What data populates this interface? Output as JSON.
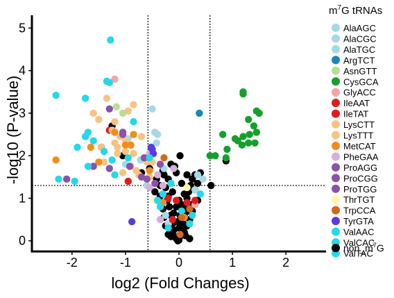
{
  "chart_data": {
    "type": "scatter",
    "title": "",
    "xlabel": "log2 (Fold Changes)",
    "ylabel": "-log10 (P-value)",
    "xlim": [
      -2.75,
      2.75
    ],
    "ylim": [
      -0.25,
      5.3
    ],
    "x_ticks": [
      -2,
      -1,
      0,
      1,
      2
    ],
    "x_tick_labels": [
      "-2",
      "-1",
      "0",
      "1",
      "2"
    ],
    "y_ticks": [
      0,
      1,
      2,
      3,
      4,
      5
    ],
    "y_tick_labels": [
      "0",
      "1",
      "2",
      "3",
      "4",
      "5"
    ],
    "thresholds": {
      "x": [
        -0.58,
        0.58
      ],
      "y": 1.3
    },
    "grid": false,
    "legend_position": "right",
    "legend": {
      "title_base": "m",
      "title_sup": "7",
      "title_rest": "G tRNAs",
      "bottom_label_base": "non_m",
      "bottom_label_sup": "7",
      "bottom_label_rest": "G"
    },
    "series": [
      {
        "name": "AlaAGC",
        "color": "#a6d8ea",
        "points": [
          [
            -0.95,
            2.4
          ],
          [
            -0.45,
            2.55
          ],
          [
            -0.72,
            1.9
          ],
          [
            0.35,
            1.55
          ],
          [
            -0.25,
            0.6
          ]
        ]
      },
      {
        "name": "AlaCGC",
        "color": "#a6d8ea",
        "points": [
          [
            -0.5,
            3.1
          ],
          [
            -0.4,
            2.5
          ],
          [
            -0.2,
            0.4
          ],
          [
            0.45,
            1.45
          ],
          [
            -1.0,
            1.8
          ]
        ]
      },
      {
        "name": "AlaTGC",
        "color": "#a6d8ea",
        "points": [
          [
            -0.42,
            2.3
          ],
          [
            -0.28,
            1.7
          ],
          [
            0.3,
            1.2
          ],
          [
            -0.6,
            1.3
          ]
        ]
      },
      {
        "name": "ArgTCT",
        "color": "#1a87b8",
        "points": [
          [
            0.38,
            3.0
          ]
        ]
      },
      {
        "name": "AsnGTT",
        "color": "#b5df96",
        "points": [
          [
            -1.17,
            3.15
          ],
          [
            -1.05,
            3.0
          ]
        ]
      },
      {
        "name": "CysGCA",
        "color": "#15a02c",
        "points": [
          [
            1.2,
            3.5
          ],
          [
            1.2,
            3.45
          ],
          [
            1.45,
            3.05
          ],
          [
            1.5,
            3.0
          ],
          [
            1.3,
            2.85
          ],
          [
            1.4,
            2.7
          ],
          [
            1.45,
            2.55
          ],
          [
            1.32,
            2.5
          ],
          [
            1.2,
            2.45
          ],
          [
            1.1,
            2.35
          ],
          [
            1.3,
            2.3
          ],
          [
            1.42,
            2.3
          ],
          [
            0.82,
            2.5
          ],
          [
            1.05,
            2.4
          ],
          [
            1.18,
            2.25
          ],
          [
            0.9,
            2.15
          ],
          [
            0.68,
            2.0
          ],
          [
            0.58,
            2.0
          ],
          [
            0.88,
            1.95
          ]
        ]
      },
      {
        "name": "GlyACC",
        "color": "#f4a6a6",
        "points": [
          [
            -1.2,
            3.8
          ],
          [
            0.3,
            0.85
          ]
        ]
      },
      {
        "name": "IleAAT",
        "color": "#e31a1c",
        "points": [
          [
            -1.3,
            2.6
          ],
          [
            -0.95,
            1.4
          ],
          [
            0.15,
            0.9
          ],
          [
            -0.12,
            0.5
          ]
        ]
      },
      {
        "name": "IleTAT",
        "color": "#e31a1c",
        "points": [
          [
            -0.05,
            0.95
          ],
          [
            0.3,
            0.95
          ],
          [
            -0.2,
            1.0
          ]
        ]
      },
      {
        "name": "LysCTT",
        "color": "#f7c384",
        "points": [
          [
            -1.6,
            3.0
          ],
          [
            -1.5,
            2.85
          ],
          [
            -1.25,
            2.6
          ],
          [
            -1.1,
            2.45
          ],
          [
            -1.2,
            2.3
          ],
          [
            -1.15,
            2.2
          ],
          [
            -1.0,
            2.1
          ],
          [
            -0.85,
            2.05
          ],
          [
            -1.4,
            1.85
          ],
          [
            -1.3,
            1.7
          ],
          [
            -0.8,
            1.65
          ],
          [
            -0.7,
            2.45
          ],
          [
            -0.85,
            3.2
          ],
          [
            -0.95,
            3.05
          ],
          [
            -1.35,
            3.35
          ],
          [
            -1.15,
            2.05
          ],
          [
            -0.75,
            1.55
          ],
          [
            -0.6,
            1.85
          ]
        ]
      },
      {
        "name": "LysTTT",
        "color": "#f7c384",
        "points": [
          [
            -1.45,
            2.2
          ],
          [
            -1.2,
            2.8
          ],
          [
            -1.0,
            2.35
          ],
          [
            -0.9,
            1.75
          ],
          [
            -0.5,
            1.85
          ],
          [
            -1.05,
            1.6
          ],
          [
            -0.55,
            1.5
          ]
        ]
      },
      {
        "name": "MetCAT",
        "color": "#f28d1a",
        "points": [
          [
            -2.3,
            1.9
          ],
          [
            -1.65,
            2.2
          ],
          [
            -1.5,
            1.85
          ],
          [
            -1.2,
            2.55
          ],
          [
            -1.0,
            2.25
          ],
          [
            -0.9,
            2.25
          ],
          [
            -0.85,
            2.5
          ],
          [
            -0.55,
            1.65
          ],
          [
            -0.3,
            0.9
          ],
          [
            0.1,
            0.55
          ]
        ]
      },
      {
        "name": "PheGAA",
        "color": "#d5b0d8",
        "points": [
          [
            -0.5,
            2.1
          ],
          [
            -0.55,
            2.05
          ],
          [
            -0.4,
            1.55
          ],
          [
            -0.55,
            1.25
          ],
          [
            -0.3,
            1.3
          ],
          [
            -0.1,
            1.7
          ],
          [
            -0.35,
            0.5
          ]
        ]
      },
      {
        "name": "ProAGG",
        "color": "#8a52a8",
        "points": [
          [
            -1.3,
            3.1
          ],
          [
            -1.05,
            2.55
          ],
          [
            -0.92,
            1.75
          ],
          [
            -0.7,
            1.5
          ],
          [
            -2.1,
            1.45
          ]
        ]
      },
      {
        "name": "ProCGG",
        "color": "#8a52a8",
        "points": [
          [
            -1.05,
            2.5
          ],
          [
            -0.65,
            1.95
          ],
          [
            -1.3,
            1.7
          ],
          [
            -0.6,
            1.45
          ]
        ]
      },
      {
        "name": "ProTGG",
        "color": "#8a52a8",
        "points": [
          [
            -0.45,
            1.35
          ],
          [
            -0.35,
            1.8
          ],
          [
            -1.6,
            1.75
          ]
        ]
      },
      {
        "name": "ThrTGT",
        "color": "#fff7a8",
        "points": [
          [
            -0.45,
            0.95
          ],
          [
            0.15,
            1.25
          ]
        ]
      },
      {
        "name": "TrpCCA",
        "color": "#d2691e",
        "points": [
          [
            -0.28,
            1.95
          ],
          [
            0.05,
            0.55
          ],
          [
            0.2,
            0.75
          ],
          [
            0.02,
            0.15
          ]
        ]
      },
      {
        "name": "TyrGTA",
        "color": "#5b3be0",
        "points": [
          [
            -0.88,
            0.45
          ],
          [
            -0.5,
            2.15
          ],
          [
            -0.48,
            2.05
          ],
          [
            -0.52,
            2.2
          ]
        ]
      },
      {
        "name": "ValAAC",
        "color": "#23d9ea",
        "points": [
          [
            -1.28,
            4.72
          ],
          [
            -2.3,
            3.42
          ],
          [
            -1.75,
            3.35
          ],
          [
            -1.35,
            3.75
          ],
          [
            -1.3,
            3.72
          ],
          [
            -1.7,
            2.55
          ],
          [
            -1.6,
            2.35
          ],
          [
            -1.9,
            2.2
          ],
          [
            -1.7,
            1.75
          ],
          [
            -2.25,
            1.45
          ],
          [
            -1.95,
            1.4
          ],
          [
            -1.25,
            1.9
          ],
          [
            -1.2,
            1.55
          ],
          [
            -0.4,
            0.95
          ],
          [
            -0.3,
            1.1
          ],
          [
            0.2,
            0.4
          ]
        ]
      },
      {
        "name": "ValCAC",
        "color": "#23d9ea",
        "points": [
          [
            -1.75,
            2.45
          ],
          [
            -1.4,
            2.1
          ],
          [
            -0.85,
            2.8
          ],
          [
            -0.35,
            0.8
          ],
          [
            -0.15,
            1.35
          ],
          [
            0.05,
            0.7
          ]
        ]
      },
      {
        "name": "ValTAC",
        "color": "#23d9ea",
        "points": [
          [
            -0.95,
            1.95
          ],
          [
            -0.55,
            1.95
          ],
          [
            -0.2,
            0.3
          ],
          [
            0.25,
            0.6
          ],
          [
            0.4,
            1.1
          ]
        ]
      },
      {
        "name": "non_m7G",
        "color": "#000000",
        "points": [
          [
            -1.45,
            2.2
          ],
          [
            -1.25,
            2.7
          ],
          [
            -1.05,
            2.0
          ],
          [
            -0.7,
            1.6
          ],
          [
            -0.55,
            1.7
          ],
          [
            -0.42,
            1.45
          ],
          [
            -0.35,
            1.05
          ],
          [
            -0.28,
            1.55
          ],
          [
            -0.25,
            1.25
          ],
          [
            -0.2,
            1.05
          ],
          [
            -0.18,
            0.8
          ],
          [
            -0.15,
            0.6
          ],
          [
            -0.12,
            0.4
          ],
          [
            -0.1,
            0.25
          ],
          [
            -0.08,
            0.1
          ],
          [
            -0.05,
            0.05
          ],
          [
            -0.02,
            0.0
          ],
          [
            0.0,
            0.02
          ],
          [
            0.03,
            0.12
          ],
          [
            0.05,
            0.25
          ],
          [
            0.08,
            0.4
          ],
          [
            0.1,
            0.6
          ],
          [
            0.12,
            0.8
          ],
          [
            0.15,
            1.0
          ],
          [
            0.18,
            1.15
          ],
          [
            0.22,
            1.3
          ],
          [
            0.25,
            1.45
          ],
          [
            0.3,
            1.55
          ],
          [
            0.35,
            1.35
          ],
          [
            0.4,
            1.6
          ],
          [
            0.6,
            1.3
          ],
          [
            0.88,
            1.88
          ],
          [
            0.02,
            2.0
          ],
          [
            -0.05,
            1.6
          ],
          [
            0.05,
            1.35
          ],
          [
            -0.12,
            1.15
          ],
          [
            -0.22,
            0.95
          ],
          [
            -0.3,
            0.75
          ],
          [
            -0.28,
            0.55
          ],
          [
            -0.25,
            0.35
          ],
          [
            -0.2,
            0.15
          ],
          [
            -0.15,
            0.1
          ],
          [
            0.0,
            0.3
          ],
          [
            0.1,
            0.2
          ],
          [
            0.15,
            0.35
          ],
          [
            0.2,
            0.5
          ],
          [
            0.25,
            0.7
          ],
          [
            0.3,
            0.9
          ],
          [
            0.35,
            0.95
          ],
          [
            0.15,
            1.55
          ],
          [
            -0.08,
            1.75
          ],
          [
            0.2,
            0.05
          ],
          [
            0.12,
            0.12
          ],
          [
            -0.02,
            0.45
          ],
          [
            -0.1,
            0.65
          ],
          [
            0.05,
            0.85
          ],
          [
            -0.35,
            1.3
          ],
          [
            -0.45,
            1.15
          ],
          [
            -0.2,
            1.45
          ],
          [
            0.3,
            1.2
          ],
          [
            0.1,
            1.1
          ],
          [
            0.0,
            0.95
          ],
          [
            -0.05,
            0.8
          ],
          [
            0.02,
            0.6
          ],
          [
            0.18,
            0.7
          ],
          [
            0.22,
            0.85
          ],
          [
            -0.15,
            1.8
          ],
          [
            -0.3,
            1.65
          ]
        ]
      }
    ]
  }
}
